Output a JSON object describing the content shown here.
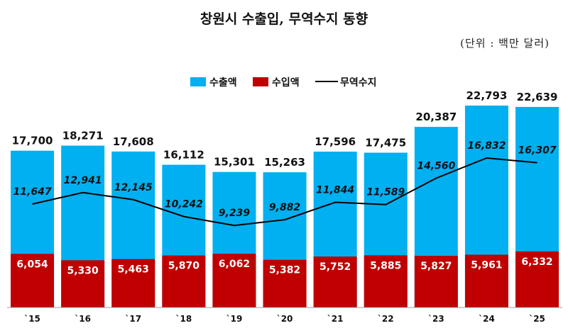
{
  "chart_data": {
    "type": "bar",
    "title": "창원시 수출입, 무역수지 동향",
    "unit": "(단위 : 백만 달러)",
    "categories": [
      "`15",
      "`16",
      "`17",
      "`18",
      "`19",
      "`20",
      "`21",
      "`22",
      "`23",
      "`24",
      "`25"
    ],
    "series": [
      {
        "name": "수출액",
        "type": "bar",
        "color": "#00b0f0",
        "values": [
          17700,
          18271,
          17608,
          16112,
          15301,
          15263,
          17596,
          17475,
          20387,
          22793,
          22639
        ],
        "labels": [
          "17,700",
          "18,271",
          "17,608",
          "16,112",
          "15,301",
          "15,263",
          "17,596",
          "17,475",
          "20,387",
          "22,793",
          "22,639"
        ]
      },
      {
        "name": "수입액",
        "type": "bar",
        "color": "#c00000",
        "values": [
          6054,
          5330,
          5463,
          5870,
          6062,
          5382,
          5752,
          5885,
          5827,
          5961,
          6332
        ],
        "labels": [
          "6,054",
          "5,330",
          "5,463",
          "5,870",
          "6,062",
          "5,382",
          "5,752",
          "5,885",
          "5,827",
          "5,961",
          "6,332"
        ]
      },
      {
        "name": "무역수지",
        "type": "line",
        "color": "#000000",
        "values": [
          11647,
          12941,
          12145,
          10242,
          9239,
          9882,
          11844,
          11589,
          14560,
          16832,
          16307
        ],
        "labels": [
          "11,647",
          "12,941",
          "12,145",
          "10,242",
          "9,239",
          "9,882",
          "11,844",
          "11,589",
          "14,560",
          "16,832",
          "16,307"
        ]
      }
    ],
    "ylim": [
      0,
      25000
    ],
    "line_ylim": [
      0,
      30000
    ],
    "legend_position": "top-center",
    "grid": false
  }
}
